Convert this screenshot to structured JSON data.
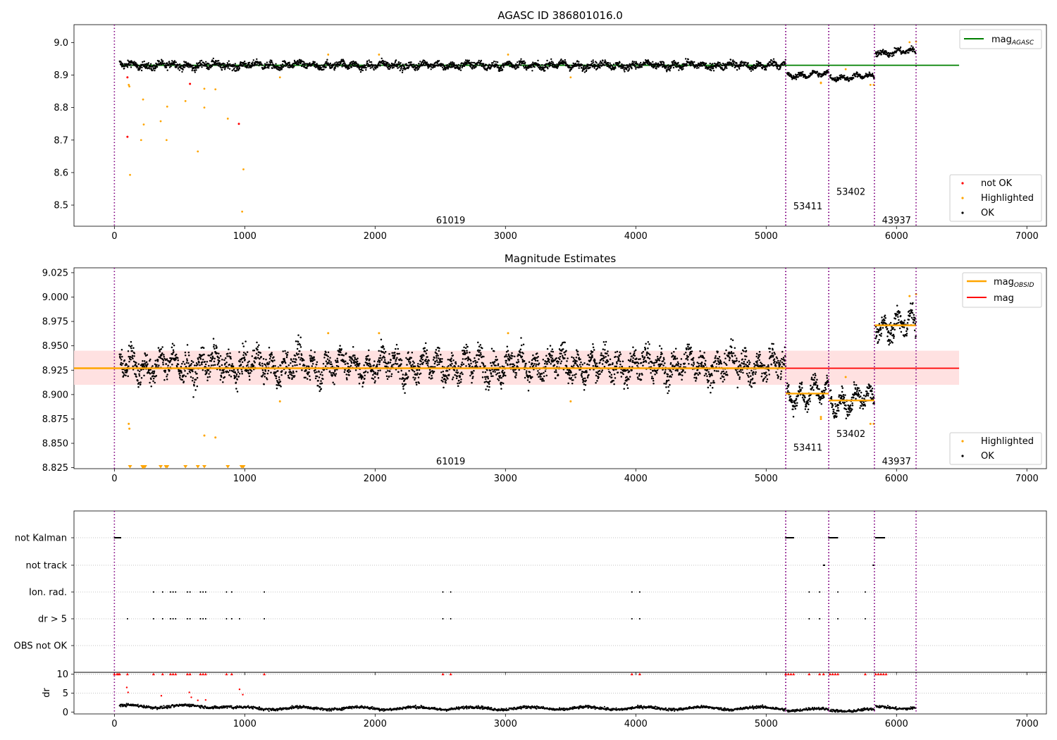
{
  "figure": {
    "title_top": "AGASC ID 386801016.0",
    "title_mid": "Magnitude Estimates"
  },
  "legend_top": {
    "line_label": "mag",
    "line_sub": "AGASC",
    "not_ok": "not OK",
    "highlighted": "Highlighted",
    "ok": "OK"
  },
  "legend_mid": {
    "line1_label": "mag",
    "line1_sub": "OBSID",
    "line2_label": "mag",
    "highlighted": "Highlighted",
    "ok": "OK"
  },
  "colors": {
    "green": "#008000",
    "red": "#ff0000",
    "orange": "#ffa500",
    "black": "#000000",
    "purple": "#800080",
    "band": "#ffdede",
    "grid": "#b0b0b0"
  },
  "obsids": [
    {
      "id": "61019",
      "start": 0,
      "end": 5150
    },
    {
      "id": "53411",
      "start": 5150,
      "end": 5480
    },
    {
      "id": "53402",
      "start": 5480,
      "end": 5830
    },
    {
      "id": "43937",
      "start": 5830,
      "end": 6150
    }
  ],
  "obsid_labels": [
    {
      "text": "61019",
      "x": 2580,
      "y_top": 8.455,
      "y_mid": 8.832
    },
    {
      "text": "53411",
      "x": 5320,
      "y_top": 8.498,
      "y_mid": 8.846
    },
    {
      "text": "53402",
      "x": 5650,
      "y_top": 8.542,
      "y_mid": 8.86
    },
    {
      "text": "43937",
      "x": 6000,
      "y_top": 8.455,
      "y_mid": 8.832
    }
  ],
  "chart_data": [
    {
      "type": "scatter",
      "title": "AGASC ID 386801016.0",
      "xlim": [
        -310,
        7150
      ],
      "ylim": [
        8.435,
        9.055
      ],
      "xticks": [
        0,
        1000,
        2000,
        3000,
        4000,
        5000,
        6000,
        7000
      ],
      "yticks": [
        8.5,
        8.6,
        8.7,
        8.8,
        8.9,
        9.0
      ],
      "mag_agasc": 8.93,
      "mag_agasc_xrange": [
        50,
        6480
      ],
      "ok_segments": [
        {
          "x0": 40,
          "x1": 5150,
          "mean": 8.93,
          "spread": 0.012
        },
        {
          "x0": 5160,
          "x1": 5480,
          "mean": 8.901,
          "spread": 0.008
        },
        {
          "x0": 5490,
          "x1": 5830,
          "mean": 8.894,
          "spread": 0.008
        },
        {
          "x0": 5840,
          "x1": 6150,
          "mean": 8.971,
          "spread": 0.01
        }
      ],
      "not_ok": [
        {
          "x": 100,
          "y": 8.893
        },
        {
          "x": 100,
          "y": 8.71
        },
        {
          "x": 580,
          "y": 8.873
        },
        {
          "x": 955,
          "y": 8.75
        }
      ],
      "highlighted": [
        {
          "x": 110,
          "y": 8.87
        },
        {
          "x": 115,
          "y": 8.865
        },
        {
          "x": 120,
          "y": 8.593
        },
        {
          "x": 205,
          "y": 8.7
        },
        {
          "x": 220,
          "y": 8.825
        },
        {
          "x": 225,
          "y": 8.748
        },
        {
          "x": 355,
          "y": 8.758
        },
        {
          "x": 400,
          "y": 8.7
        },
        {
          "x": 405,
          "y": 8.803
        },
        {
          "x": 545,
          "y": 8.82
        },
        {
          "x": 640,
          "y": 8.665
        },
        {
          "x": 690,
          "y": 8.8
        },
        {
          "x": 690,
          "y": 8.858
        },
        {
          "x": 775,
          "y": 8.856
        },
        {
          "x": 870,
          "y": 8.766
        },
        {
          "x": 980,
          "y": 8.48
        },
        {
          "x": 990,
          "y": 8.61
        },
        {
          "x": 1270,
          "y": 8.893
        },
        {
          "x": 1640,
          "y": 8.963
        },
        {
          "x": 2030,
          "y": 8.963
        },
        {
          "x": 3020,
          "y": 8.963
        },
        {
          "x": 3500,
          "y": 8.893
        },
        {
          "x": 5420,
          "y": 8.877
        },
        {
          "x": 5420,
          "y": 8.875
        },
        {
          "x": 5610,
          "y": 8.918
        },
        {
          "x": 5800,
          "y": 8.87
        },
        {
          "x": 5825,
          "y": 8.87
        },
        {
          "x": 6100,
          "y": 9.001
        },
        {
          "x": 6150,
          "y": 9.003
        }
      ]
    },
    {
      "type": "scatter",
      "title": "Magnitude Estimates",
      "xlim": [
        -310,
        7150
      ],
      "ylim": [
        8.824,
        9.03
      ],
      "xticks": [
        0,
        1000,
        2000,
        3000,
        4000,
        5000,
        6000,
        7000
      ],
      "yticks": [
        8.825,
        8.85,
        8.875,
        8.9,
        8.925,
        8.95,
        8.975,
        9.0,
        9.025
      ],
      "mag": 8.927,
      "mag_xrange": [
        -310,
        6480
      ],
      "mag_band": [
        8.91,
        8.945
      ],
      "mag_obsid": [
        {
          "x0": -310,
          "x1": 5150,
          "y": 8.927
        },
        {
          "x0": 5150,
          "x1": 5480,
          "y": 8.901
        },
        {
          "x0": 5480,
          "x1": 5830,
          "y": 8.894
        },
        {
          "x0": 5830,
          "x1": 6150,
          "y": 8.971
        }
      ],
      "highlighted_low_x": [
        120,
        215,
        225,
        235,
        355,
        395,
        405,
        545,
        640,
        690,
        870,
        975,
        985,
        990
      ]
    },
    {
      "type": "scatter",
      "title": "",
      "xlim": [
        -310,
        7150
      ],
      "categories": [
        "not Kalman",
        "not track",
        "Ion. rad.",
        "dr > 5",
        "OBS not OK"
      ],
      "flags": {
        "not Kalman": [
          [
            0,
            50
          ],
          [
            5150,
            5210
          ],
          [
            5480,
            5550
          ],
          [
            5840,
            5910
          ]
        ],
        "not track": [
          [
            5440,
            5450
          ],
          [
            5820,
            5830
          ]
        ],
        "Ion. rad.": [
          300,
          370,
          430,
          450,
          470,
          560,
          580,
          660,
          680,
          700,
          860,
          900,
          1150,
          2520,
          2580,
          3970,
          4030,
          5330,
          5410,
          5550,
          5760
        ],
        "dr > 5": [
          100,
          300,
          370,
          430,
          450,
          470,
          560,
          580,
          660,
          680,
          700,
          860,
          900,
          960,
          1150,
          2520,
          2580,
          3970,
          4030,
          5330,
          5410,
          5550,
          5760
        ],
        "OBS not OK": []
      }
    },
    {
      "type": "scatter",
      "title": "",
      "ylabel": "dr",
      "xlim": [
        -310,
        7150
      ],
      "ylim": [
        -0.5,
        10.5
      ],
      "yticks": [
        0,
        5,
        10
      ],
      "xticks": [
        0,
        1000,
        2000,
        3000,
        4000,
        5000,
        6000,
        7000
      ],
      "capped_x": [
        0,
        20,
        30,
        40,
        100,
        300,
        370,
        430,
        450,
        470,
        560,
        580,
        660,
        680,
        700,
        860,
        900,
        1150,
        2520,
        2580,
        3970,
        4030,
        5150,
        5170,
        5190,
        5210,
        5330,
        5410,
        5440,
        5490,
        5510,
        5530,
        5550,
        5760,
        5840,
        5860,
        5880,
        5900,
        5920
      ],
      "scattered": [
        {
          "x": 95,
          "y": 6.5
        },
        {
          "x": 105,
          "y": 5.2
        },
        {
          "x": 360,
          "y": 4.3
        },
        {
          "x": 575,
          "y": 5.2
        },
        {
          "x": 590,
          "y": 3.9
        },
        {
          "x": 640,
          "y": 3.1
        },
        {
          "x": 700,
          "y": 3.2
        },
        {
          "x": 960,
          "y": 6.0
        },
        {
          "x": 985,
          "y": 4.6
        }
      ]
    }
  ]
}
